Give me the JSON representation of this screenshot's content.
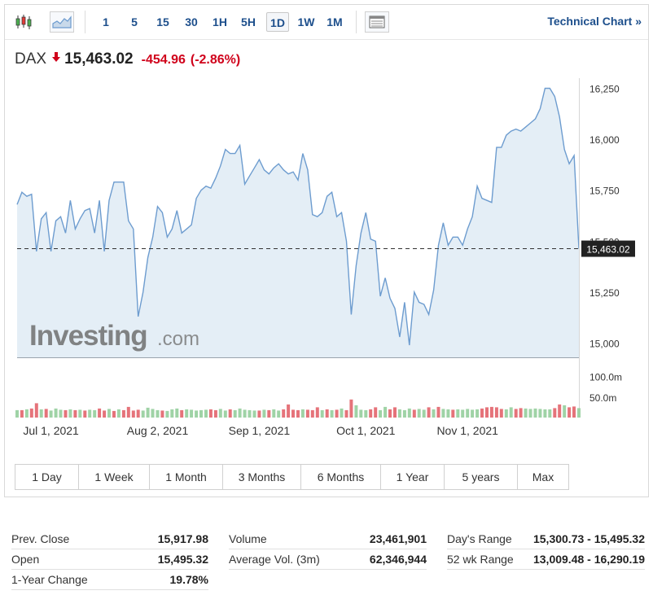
{
  "toolbar": {
    "intervals": [
      "1",
      "5",
      "15",
      "30",
      "1H",
      "5H",
      "1D",
      "1W",
      "1M"
    ],
    "active_interval": "1D",
    "technical_chart_label": "Technical Chart »",
    "icons": [
      "candlestick-icon",
      "area-chart-icon",
      "table-icon"
    ]
  },
  "quote": {
    "symbol": "DAX",
    "price": "15,463.02",
    "change": "-454.96",
    "change_pct": "(-2.86%)",
    "direction": "down"
  },
  "colors": {
    "line": "#6d9ccf",
    "area": "#e1ecf5",
    "down": "#d0021b",
    "volume_up": "#9fd3a6",
    "volume_down": "#e5737a",
    "link": "#1d4f8c"
  },
  "watermark": {
    "brand": "Investing",
    "suffix": ".com"
  },
  "chart_data": {
    "type": "area",
    "x_tick_labels": [
      "Jul 1, 2021",
      "Aug 2, 2021",
      "Sep 1, 2021",
      "Oct 1, 2021",
      "Nov 1, 2021"
    ],
    "x_tick_index": [
      7,
      29,
      50,
      72,
      93
    ],
    "y_ticks": [
      "16,250",
      "16,000",
      "15,750",
      "15,500",
      "15,250",
      "15,000"
    ],
    "y_tick_values": [
      16250,
      16000,
      15750,
      15500,
      15250,
      15000
    ],
    "ylim": [
      14930,
      16300
    ],
    "last_price_label": "15,463.02",
    "last_price": 15463.02,
    "close": [
      15680,
      15740,
      15720,
      15730,
      15450,
      15610,
      15640,
      15450,
      15600,
      15620,
      15540,
      15700,
      15560,
      15610,
      15650,
      15660,
      15540,
      15700,
      15450,
      15700,
      15790,
      15790,
      15790,
      15600,
      15560,
      15130,
      15250,
      15420,
      15520,
      15670,
      15640,
      15520,
      15560,
      15650,
      15540,
      15560,
      15580,
      15710,
      15750,
      15770,
      15760,
      15810,
      15870,
      15950,
      15930,
      15930,
      15970,
      15780,
      15820,
      15860,
      15900,
      15850,
      15830,
      15860,
      15880,
      15850,
      15830,
      15840,
      15800,
      15930,
      15850,
      15630,
      15620,
      15640,
      15720,
      15740,
      15620,
      15640,
      15500,
      15140,
      15380,
      15540,
      15640,
      15510,
      15500,
      15230,
      15320,
      15220,
      15170,
      15030,
      15200,
      14990,
      15250,
      15200,
      15190,
      15140,
      15260,
      15480,
      15590,
      15480,
      15520,
      15520,
      15480,
      15560,
      15620,
      15770,
      15710,
      15700,
      15690,
      15960,
      15960,
      16020,
      16040,
      16050,
      16040,
      16060,
      16080,
      16100,
      16150,
      16250,
      16250,
      16210,
      16110,
      15950,
      15880,
      15920,
      15463
    ],
    "volume": [
      18,
      18,
      20,
      22,
      35,
      20,
      21,
      17,
      22,
      19,
      18,
      20,
      18,
      19,
      17,
      19,
      18,
      22,
      17,
      21,
      16,
      20,
      18,
      26,
      17,
      19,
      17,
      24,
      21,
      18,
      17,
      16,
      20,
      22,
      18,
      20,
      19,
      17,
      18,
      19,
      20,
      18,
      21,
      17,
      20,
      18,
      22,
      19,
      18,
      17,
      17,
      19,
      18,
      20,
      17,
      20,
      32,
      19,
      18,
      20,
      19,
      18,
      25,
      18,
      20,
      18,
      19,
      22,
      18,
      44,
      30,
      19,
      18,
      20,
      25,
      18,
      26,
      20,
      25,
      20,
      18,
      22,
      19,
      21,
      19,
      25,
      20,
      26,
      21,
      20,
      19,
      20,
      19,
      21,
      19,
      20,
      22,
      25,
      26,
      25,
      21,
      20,
      25,
      21,
      23,
      22,
      21,
      22,
      21,
      20,
      20,
      23,
      32,
      30,
      25,
      27,
      23
    ],
    "volume_direction": [
      0,
      1,
      0,
      1,
      1,
      0,
      1,
      0,
      0,
      0,
      1,
      0,
      1,
      0,
      1,
      0,
      0,
      1,
      1,
      0,
      1,
      0,
      1,
      1,
      1,
      1,
      0,
      0,
      0,
      0,
      1,
      0,
      0,
      0,
      1,
      0,
      0,
      0,
      0,
      0,
      1,
      1,
      0,
      0,
      1,
      0,
      0,
      0,
      0,
      0,
      1,
      0,
      1,
      0,
      0,
      1,
      1,
      1,
      1,
      0,
      1,
      1,
      1,
      0,
      1,
      0,
      1,
      0,
      1,
      1,
      0,
      0,
      0,
      1,
      1,
      0,
      0,
      1,
      1,
      0,
      0,
      0,
      1,
      0,
      0,
      1,
      0,
      1,
      0,
      0,
      1,
      0,
      0,
      0,
      0,
      0,
      1,
      1,
      1,
      1,
      1,
      0,
      0,
      1,
      1,
      0,
      0,
      0,
      0,
      0,
      0,
      1,
      1,
      0,
      1,
      1,
      0
    ],
    "volume_ticks": [
      "100.0m",
      "50.0m"
    ],
    "volume_tick_values": [
      100,
      50
    ],
    "volume_max": 145,
    "volume_unit": "m"
  },
  "ranges": [
    "1 Day",
    "1 Week",
    "1 Month",
    "3 Months",
    "6 Months",
    "1 Year",
    "5 years",
    "Max"
  ],
  "stats": {
    "col1": [
      {
        "label": "Prev. Close",
        "value": "15,917.98"
      },
      {
        "label": "Open",
        "value": "15,495.32"
      },
      {
        "label": "1-Year Change",
        "value": "19.78%"
      }
    ],
    "col2": [
      {
        "label": "Volume",
        "value": "23,461,901"
      },
      {
        "label": "Average Vol. (3m)",
        "value": "62,346,944"
      }
    ],
    "col3": [
      {
        "label": "Day's Range",
        "value": "15,300.73 - 15,495.32"
      },
      {
        "label": "52 wk Range",
        "value": "13,009.48 - 16,290.19"
      }
    ]
  }
}
